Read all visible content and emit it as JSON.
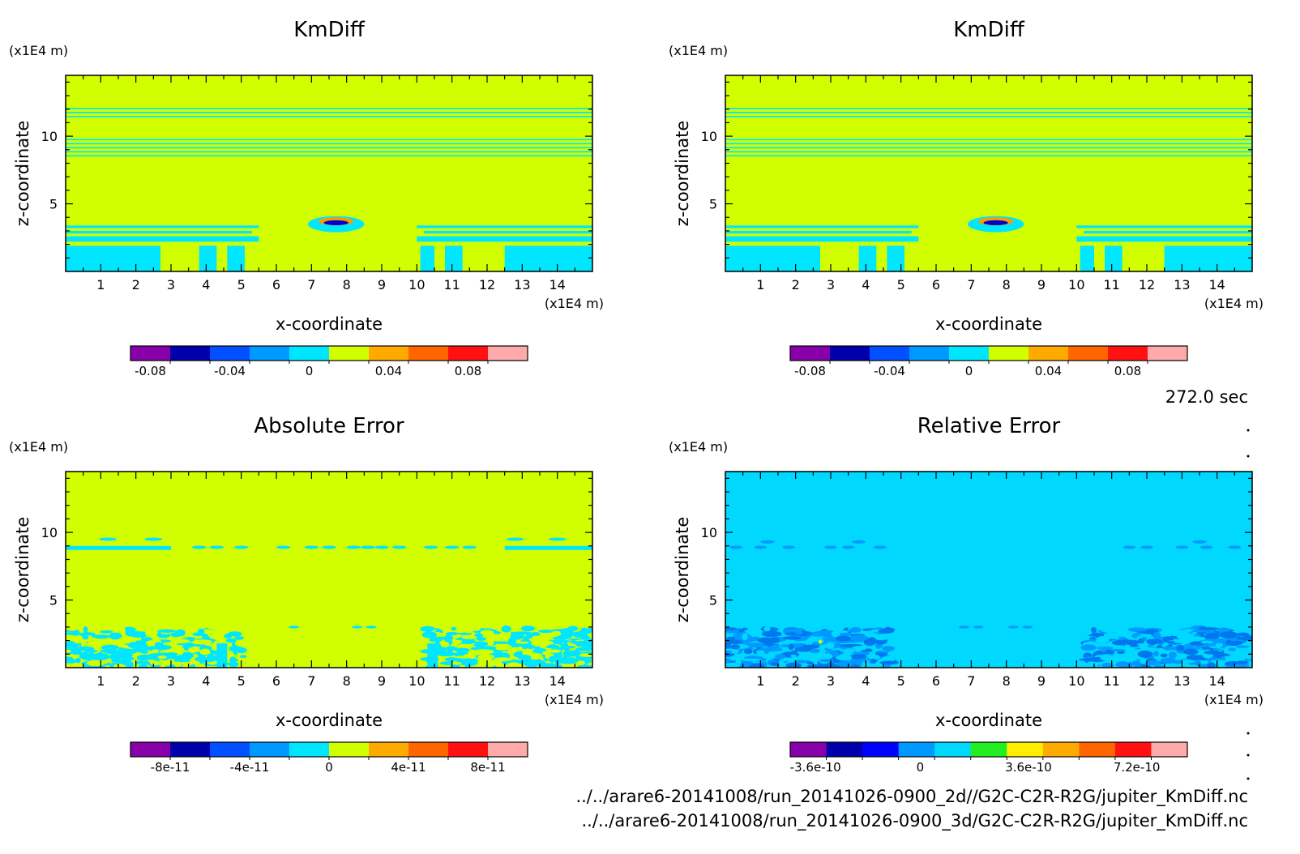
{
  "figure": {
    "time_label": "272.0 sec",
    "file_paths": [
      "../../arare6-20141008/run_20141026-0900_2d//G2C-C2R-R2G/jupiter_KmDiff.nc",
      "../../arare6-20141008/run_20141026-0900_3d/G2C-C2R-R2G/jupiter_KmDiff.nc"
    ]
  },
  "chart_data": [
    {
      "type": "heatmap",
      "title": "KmDiff",
      "xlabel": "x-coordinate",
      "ylabel": "z-coordinate",
      "x_unit": "(x1E4 m)",
      "y_unit": "(x1E4 m)",
      "xlim": [
        0,
        15
      ],
      "ylim": [
        0,
        14.5
      ],
      "xticks": [
        1,
        2,
        3,
        4,
        5,
        6,
        7,
        8,
        9,
        10,
        11,
        12,
        13,
        14
      ],
      "yticks": [
        5,
        10
      ],
      "background": "#d2ff00",
      "features": [
        {
          "kind": "band",
          "color": "#00e6ff",
          "z": [
            12.0,
            12.1
          ]
        },
        {
          "kind": "band",
          "color": "#00e6ff",
          "z": [
            11.7,
            11.8
          ]
        },
        {
          "kind": "band",
          "color": "#00e6ff",
          "z": [
            11.4,
            11.5
          ]
        },
        {
          "kind": "band",
          "color": "#00e6ff",
          "z": [
            9.7,
            9.8
          ]
        },
        {
          "kind": "band",
          "color": "#00e6ff",
          "z": [
            9.4,
            9.5
          ]
        },
        {
          "kind": "band",
          "color": "#00e6ff",
          "z": [
            9.1,
            9.2
          ]
        },
        {
          "kind": "band",
          "color": "#00e6ff",
          "z": [
            8.8,
            8.9
          ]
        },
        {
          "kind": "band",
          "color": "#00e6ff",
          "z": [
            8.5,
            8.6
          ]
        },
        {
          "kind": "segment",
          "color": "#00e6ff",
          "z": [
            3.2,
            3.4
          ],
          "x": [
            0,
            5.5
          ]
        },
        {
          "kind": "segment",
          "color": "#00e6ff",
          "z": [
            3.2,
            3.4
          ],
          "x": [
            10,
            15
          ]
        },
        {
          "kind": "segment",
          "color": "#00e6ff",
          "z": [
            2.8,
            3.0
          ],
          "x": [
            0,
            5.3
          ]
        },
        {
          "kind": "segment",
          "color": "#00e6ff",
          "z": [
            2.8,
            3.0
          ],
          "x": [
            10.2,
            15
          ]
        },
        {
          "kind": "segment",
          "color": "#00e6ff",
          "z": [
            2.2,
            2.6
          ],
          "x": [
            0,
            5.5
          ]
        },
        {
          "kind": "segment",
          "color": "#00e6ff",
          "z": [
            2.2,
            2.6
          ],
          "x": [
            10,
            15
          ]
        },
        {
          "kind": "block",
          "color": "#00e6ff",
          "z": [
            0,
            1.9
          ],
          "x": [
            0,
            2.7
          ]
        },
        {
          "kind": "block",
          "color": "#00e6ff",
          "z": [
            0,
            1.9
          ],
          "x": [
            12.5,
            15
          ]
        },
        {
          "kind": "block",
          "color": "#00e6ff",
          "z": [
            0,
            1.9
          ],
          "x": [
            3.8,
            4.3
          ]
        },
        {
          "kind": "block",
          "color": "#00e6ff",
          "z": [
            0,
            1.9
          ],
          "x": [
            4.6,
            5.1
          ]
        },
        {
          "kind": "block",
          "color": "#00e6ff",
          "z": [
            0,
            1.9
          ],
          "x": [
            10.1,
            10.5
          ]
        },
        {
          "kind": "block",
          "color": "#00e6ff",
          "z": [
            0,
            1.9
          ],
          "x": [
            10.8,
            11.3
          ]
        },
        {
          "kind": "blob",
          "color": "#00e6ff",
          "x": 7.7,
          "z": 3.5,
          "rx": 0.8,
          "rz": 0.6
        },
        {
          "kind": "blob",
          "color": "#ff9900",
          "x": 7.7,
          "z": 3.7,
          "rx": 0.5,
          "rz": 0.3
        },
        {
          "kind": "blob",
          "color": "#0000cc",
          "x": 7.7,
          "z": 3.6,
          "rx": 0.35,
          "rz": 0.18
        }
      ],
      "colorbar": {
        "colors": [
          "#8800aa",
          "#0000aa",
          "#0050ff",
          "#0099ff",
          "#00e6ff",
          "#d2ff00",
          "#ffaa00",
          "#ff6600",
          "#ff1111",
          "#ffaaaa"
        ],
        "tick_labels": [
          "-0.08",
          "-0.04",
          "0",
          "0.04",
          "0.08"
        ],
        "tick_positions": [
          0.5,
          2.5,
          4.5,
          6.5,
          8.5
        ]
      }
    },
    {
      "type": "heatmap",
      "title": "KmDiff",
      "xlabel": "x-coordinate",
      "ylabel": "z-coordinate",
      "x_unit": "(x1E4 m)",
      "y_unit": "(x1E4 m)",
      "xlim": [
        0,
        15
      ],
      "ylim": [
        0,
        14.5
      ],
      "xticks": [
        1,
        2,
        3,
        4,
        5,
        6,
        7,
        8,
        9,
        10,
        11,
        12,
        13,
        14
      ],
      "yticks": [
        5,
        10
      ],
      "background": "#d2ff00",
      "features": [
        {
          "kind": "band",
          "color": "#00e6ff",
          "z": [
            12.0,
            12.1
          ]
        },
        {
          "kind": "band",
          "color": "#00e6ff",
          "z": [
            11.7,
            11.8
          ]
        },
        {
          "kind": "band",
          "color": "#00e6ff",
          "z": [
            11.4,
            11.5
          ]
        },
        {
          "kind": "band",
          "color": "#00e6ff",
          "z": [
            9.7,
            9.8
          ]
        },
        {
          "kind": "band",
          "color": "#00e6ff",
          "z": [
            9.4,
            9.5
          ]
        },
        {
          "kind": "band",
          "color": "#00e6ff",
          "z": [
            9.1,
            9.2
          ]
        },
        {
          "kind": "band",
          "color": "#00e6ff",
          "z": [
            8.8,
            8.9
          ]
        },
        {
          "kind": "band",
          "color": "#00e6ff",
          "z": [
            8.5,
            8.6
          ]
        },
        {
          "kind": "segment",
          "color": "#00e6ff",
          "z": [
            3.2,
            3.4
          ],
          "x": [
            0,
            5.5
          ]
        },
        {
          "kind": "segment",
          "color": "#00e6ff",
          "z": [
            3.2,
            3.4
          ],
          "x": [
            10,
            15
          ]
        },
        {
          "kind": "segment",
          "color": "#00e6ff",
          "z": [
            2.8,
            3.0
          ],
          "x": [
            0,
            5.3
          ]
        },
        {
          "kind": "segment",
          "color": "#00e6ff",
          "z": [
            2.8,
            3.0
          ],
          "x": [
            10.2,
            15
          ]
        },
        {
          "kind": "segment",
          "color": "#00e6ff",
          "z": [
            2.2,
            2.6
          ],
          "x": [
            0,
            5.5
          ]
        },
        {
          "kind": "segment",
          "color": "#00e6ff",
          "z": [
            2.2,
            2.6
          ],
          "x": [
            10,
            15
          ]
        },
        {
          "kind": "block",
          "color": "#00e6ff",
          "z": [
            0,
            1.9
          ],
          "x": [
            0,
            2.7
          ]
        },
        {
          "kind": "block",
          "color": "#00e6ff",
          "z": [
            0,
            1.9
          ],
          "x": [
            12.5,
            15
          ]
        },
        {
          "kind": "block",
          "color": "#00e6ff",
          "z": [
            0,
            1.9
          ],
          "x": [
            3.8,
            4.3
          ]
        },
        {
          "kind": "block",
          "color": "#00e6ff",
          "z": [
            0,
            1.9
          ],
          "x": [
            4.6,
            5.1
          ]
        },
        {
          "kind": "block",
          "color": "#00e6ff",
          "z": [
            0,
            1.9
          ],
          "x": [
            10.1,
            10.5
          ]
        },
        {
          "kind": "block",
          "color": "#00e6ff",
          "z": [
            0,
            1.9
          ],
          "x": [
            10.8,
            11.3
          ]
        },
        {
          "kind": "blob",
          "color": "#00e6ff",
          "x": 7.7,
          "z": 3.5,
          "rx": 0.8,
          "rz": 0.6
        },
        {
          "kind": "blob",
          "color": "#ff9900",
          "x": 7.7,
          "z": 3.7,
          "rx": 0.5,
          "rz": 0.3
        },
        {
          "kind": "blob",
          "color": "#0000cc",
          "x": 7.7,
          "z": 3.6,
          "rx": 0.35,
          "rz": 0.18
        }
      ],
      "colorbar": {
        "colors": [
          "#8800aa",
          "#0000aa",
          "#0050ff",
          "#0099ff",
          "#00e6ff",
          "#d2ff00",
          "#ffaa00",
          "#ff6600",
          "#ff1111",
          "#ffaaaa"
        ],
        "tick_labels": [
          "-0.08",
          "-0.04",
          "0",
          "0.04",
          "0.08"
        ],
        "tick_positions": [
          0.5,
          2.5,
          4.5,
          6.5,
          8.5
        ]
      }
    },
    {
      "type": "heatmap",
      "title": "Absolute Error",
      "xlabel": "x-coordinate",
      "ylabel": "z-coordinate",
      "x_unit": "(x1E4 m)",
      "y_unit": "(x1E4 m)",
      "xlim": [
        0,
        15
      ],
      "ylim": [
        0,
        14.5
      ],
      "xticks": [
        1,
        2,
        3,
        4,
        5,
        6,
        7,
        8,
        9,
        10,
        11,
        12,
        13,
        14
      ],
      "yticks": [
        5,
        10
      ],
      "background": "#d2ff00",
      "features": [
        {
          "kind": "segment",
          "color": "#00e6ff",
          "z": [
            8.7,
            9.0
          ],
          "x": [
            0,
            3.0
          ]
        },
        {
          "kind": "segment",
          "color": "#00e6ff",
          "z": [
            8.7,
            9.0
          ],
          "x": [
            12.5,
            15
          ]
        },
        {
          "kind": "dots",
          "color": "#00e6ff",
          "z": 8.9,
          "x": [
            3.8,
            4.3,
            5.0,
            6.2,
            7.0,
            7.5,
            8.2,
            8.6,
            9.0,
            9.5,
            10.4,
            11.0,
            11.5
          ],
          "rx": 0.2,
          "rz": 0.12
        },
        {
          "kind": "dots",
          "color": "#00e6ff",
          "z": 9.5,
          "x": [
            1.2,
            2.5,
            12.8,
            14.0
          ],
          "rx": 0.25,
          "rz": 0.12
        },
        {
          "kind": "speckle",
          "colors": [
            "#00e6ff",
            "#d2ff00",
            "#00e6ff"
          ],
          "z": [
            0,
            2.9
          ],
          "x": [
            0,
            5.2
          ],
          "seed": 7
        },
        {
          "kind": "speckle",
          "colors": [
            "#00e6ff",
            "#d2ff00",
            "#00e6ff"
          ],
          "z": [
            0,
            2.9
          ],
          "x": [
            10.3,
            15
          ],
          "seed": 11
        },
        {
          "kind": "block",
          "color": "#00e6ff",
          "z": [
            0,
            1.8
          ],
          "x": [
            4.3,
            4.6
          ]
        },
        {
          "kind": "block",
          "color": "#00e6ff",
          "z": [
            0,
            1.8
          ],
          "x": [
            10.3,
            10.6
          ]
        },
        {
          "kind": "dots",
          "color": "#00e6ff",
          "z": 3.0,
          "x": [
            6.5,
            8.3,
            8.7
          ],
          "rx": 0.15,
          "rz": 0.1
        }
      ],
      "colorbar": {
        "colors": [
          "#8800aa",
          "#0000aa",
          "#0050ff",
          "#0099ff",
          "#00e6ff",
          "#d2ff00",
          "#ffaa00",
          "#ff6600",
          "#ff1111",
          "#ffaaaa"
        ],
        "tick_labels": [
          "-8e-11",
          "-4e-11",
          "0",
          "4e-11",
          "8e-11"
        ],
        "tick_positions": [
          1,
          3,
          5,
          7,
          9
        ]
      }
    },
    {
      "type": "heatmap",
      "title": "Relative Error",
      "xlabel": "x-coordinate",
      "ylabel": "z-coordinate",
      "x_unit": "(x1E4 m)",
      "y_unit": "(x1E4 m)",
      "xlim": [
        0,
        15
      ],
      "ylim": [
        0,
        14.5
      ],
      "xticks": [
        1,
        2,
        3,
        4,
        5,
        6,
        7,
        8,
        9,
        10,
        11,
        12,
        13,
        14
      ],
      "yticks": [
        5,
        10
      ],
      "background": "#00d8ff",
      "features": [
        {
          "kind": "dots",
          "color": "#0099ff",
          "z": 8.9,
          "x": [
            0.3,
            1.0,
            1.8,
            3.0,
            3.5,
            4.4,
            11.5,
            12.0,
            13.0,
            13.7,
            14.5
          ],
          "rx": 0.18,
          "rz": 0.12
        },
        {
          "kind": "dots",
          "color": "#0099ff",
          "z": 9.3,
          "x": [
            1.2,
            3.8,
            13.5
          ],
          "rx": 0.2,
          "rz": 0.12
        },
        {
          "kind": "speckle",
          "colors": [
            "#0099ff",
            "#00d8ff",
            "#0077ee"
          ],
          "z": [
            0,
            2.9
          ],
          "x": [
            0,
            4.8
          ],
          "seed": 3
        },
        {
          "kind": "speckle",
          "colors": [
            "#0099ff",
            "#00d8ff",
            "#0077ee"
          ],
          "z": [
            0,
            2.9
          ],
          "x": [
            10.3,
            15
          ],
          "seed": 5
        },
        {
          "kind": "dots",
          "color": "#0099ff",
          "z": 3.0,
          "x": [
            6.8,
            7.2,
            8.2,
            8.6
          ],
          "rx": 0.15,
          "rz": 0.1
        },
        {
          "kind": "dots",
          "color": "#d2ff00",
          "z": 1.9,
          "x": [
            2.7
          ],
          "rx": 0.05,
          "rz": 0.15
        }
      ],
      "colorbar": {
        "colors": [
          "#8800aa",
          "#0000aa",
          "#0000ff",
          "#0099ff",
          "#00d8ff",
          "#22ee22",
          "#ffee00",
          "#ffaa00",
          "#ff6600",
          "#ff1111",
          "#ffaaaa"
        ],
        "tick_labels": [
          "-3.6e-10",
          "0",
          "3.6e-10",
          "7.2e-10"
        ],
        "tick_positions": [
          0.7,
          3.6,
          6.6,
          9.6
        ]
      }
    }
  ]
}
